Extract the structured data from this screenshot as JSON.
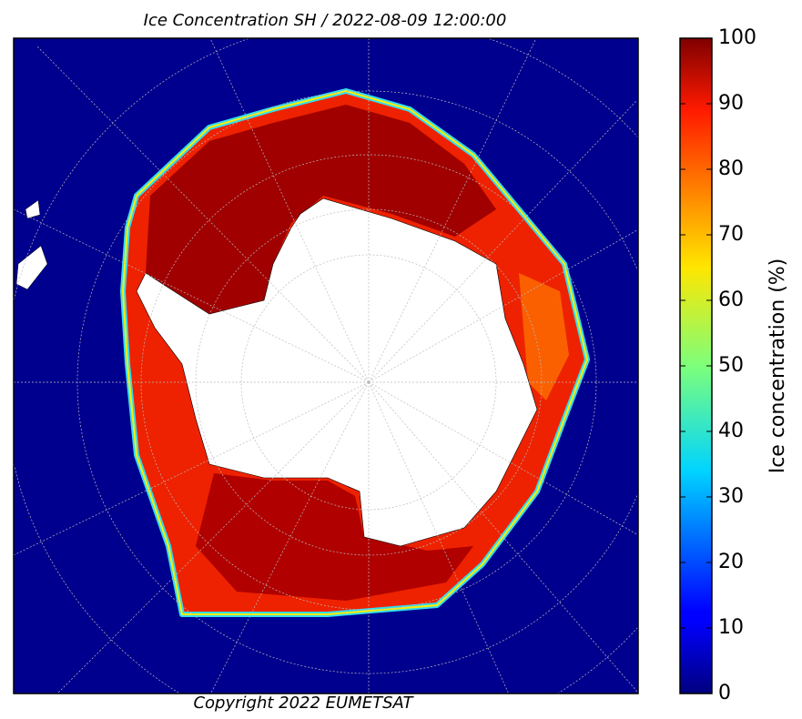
{
  "title": "Ice Concentration SH / 2022-08-09 12:00:00",
  "copyright": "Copyright 2022 EUMETSAT",
  "colorbar": {
    "label": "Ice concentration (%)",
    "lim": [
      0,
      100
    ],
    "ticks": [
      0,
      10,
      20,
      30,
      40,
      50,
      60,
      70,
      80,
      90,
      100
    ]
  }
}
